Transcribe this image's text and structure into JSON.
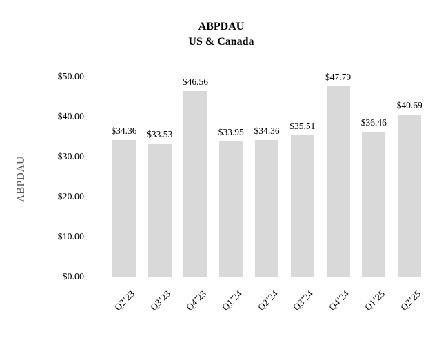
{
  "title": {
    "line1": "ABPDAU",
    "line2": "US & Canada"
  },
  "y_axis": {
    "title": "ABPDAU",
    "tick_labels": [
      "$50.00",
      "$40.00",
      "$30.00",
      "$20.00",
      "$10.00",
      "$0.00"
    ]
  },
  "chart_data": {
    "type": "bar",
    "title": "ABPDAU US & Canada",
    "categories": [
      "Q2’23",
      "Q3’23",
      "Q4’23",
      "Q1’24",
      "Q2’24",
      "Q3’24",
      "Q4’24",
      "Q1’25",
      "Q2’25"
    ],
    "values": [
      34.36,
      33.53,
      46.56,
      33.95,
      34.36,
      35.51,
      47.79,
      36.46,
      40.69
    ],
    "data_labels": [
      "$34.36",
      "$33.53",
      "$46.56",
      "$33.95",
      "$34.36",
      "$35.51",
      "$47.79",
      "$36.46",
      "$40.69"
    ],
    "xlabel": "",
    "ylabel": "ABPDAU",
    "ylim": [
      0,
      50
    ],
    "ytick_step": 10,
    "grid": false,
    "legend": "none",
    "bar_color": "#d9d9d9",
    "label_color": "#000000",
    "axis_title_color": "#595959"
  }
}
